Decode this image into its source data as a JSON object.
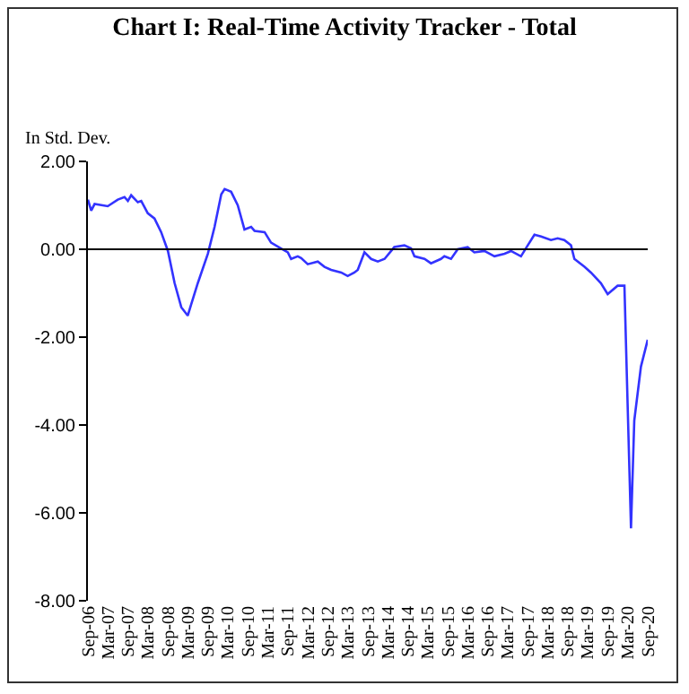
{
  "chart_data": {
    "type": "line",
    "title": "Chart I: Real-Time Activity Tracker - Total",
    "ylabel": "In Std. Dev.",
    "x": [
      "2006-09",
      "2006-10",
      "2006-11",
      "2007-03",
      "2007-06",
      "2007-08",
      "2007-09",
      "2007-10",
      "2007-12",
      "2008-01",
      "2008-03",
      "2008-05",
      "2008-07",
      "2008-09",
      "2008-11",
      "2009-01",
      "2009-03",
      "2009-04",
      "2009-06",
      "2009-09",
      "2009-11",
      "2010-01",
      "2010-02",
      "2010-04",
      "2010-06",
      "2010-08",
      "2010-10",
      "2010-11",
      "2011-02",
      "2011-04",
      "2011-07",
      "2011-09",
      "2011-10",
      "2011-12",
      "2012-01",
      "2012-03",
      "2012-06",
      "2012-08",
      "2012-10",
      "2013-01",
      "2013-03",
      "2013-05",
      "2013-06",
      "2013-08",
      "2013-10",
      "2013-12",
      "2014-02",
      "2014-05",
      "2014-08",
      "2014-10",
      "2014-11",
      "2015-02",
      "2015-04",
      "2015-07",
      "2015-08",
      "2015-10",
      "2015-12",
      "2016-03",
      "2016-05",
      "2016-08",
      "2016-11",
      "2017-02",
      "2017-04",
      "2017-07",
      "2017-09",
      "2017-11",
      "2018-01",
      "2018-04",
      "2018-06",
      "2018-08",
      "2018-10",
      "2018-11",
      "2019-02",
      "2019-04",
      "2019-07",
      "2019-09",
      "2019-12",
      "2020-02",
      "2020-03",
      "2020-04",
      "2020-05",
      "2020-07",
      "2020-09"
    ],
    "series": [
      {
        "color": "#3333ff",
        "values": [
          1.13,
          0.88,
          1.03,
          0.98,
          1.13,
          1.19,
          1.1,
          1.23,
          1.07,
          1.1,
          0.82,
          0.7,
          0.39,
          -0.04,
          -0.77,
          -1.32,
          -1.51,
          -1.26,
          -0.77,
          -0.1,
          0.51,
          1.25,
          1.37,
          1.31,
          1.0,
          0.45,
          0.51,
          0.42,
          0.39,
          0.15,
          0.02,
          -0.07,
          -0.22,
          -0.16,
          -0.2,
          -0.34,
          -0.28,
          -0.4,
          -0.47,
          -0.53,
          -0.61,
          -0.53,
          -0.47,
          -0.07,
          -0.22,
          -0.28,
          -0.22,
          0.05,
          0.09,
          0.02,
          -0.16,
          -0.22,
          -0.32,
          -0.22,
          -0.16,
          -0.22,
          0.0,
          0.05,
          -0.07,
          -0.04,
          -0.16,
          -0.1,
          -0.04,
          -0.16,
          0.09,
          0.33,
          0.29,
          0.21,
          0.25,
          0.21,
          0.09,
          -0.22,
          -0.4,
          -0.53,
          -0.77,
          -1.02,
          -0.83,
          -0.83,
          -3.5,
          -6.35,
          -3.9,
          -2.67,
          -2.06
        ]
      }
    ],
    "xlim": [
      "2006-09",
      "2020-09"
    ],
    "xticks": [
      {
        "value": "2006-09",
        "label": "Sep-06"
      },
      {
        "value": "2007-03",
        "label": "Mar-07"
      },
      {
        "value": "2007-09",
        "label": "Sep-07"
      },
      {
        "value": "2008-03",
        "label": "Mar-08"
      },
      {
        "value": "2008-09",
        "label": "Sep-08"
      },
      {
        "value": "2009-03",
        "label": "Mar-09"
      },
      {
        "value": "2009-09",
        "label": "Sep-09"
      },
      {
        "value": "2010-03",
        "label": "Mar-10"
      },
      {
        "value": "2010-09",
        "label": "Sep-10"
      },
      {
        "value": "2011-03",
        "label": "Mar-11"
      },
      {
        "value": "2011-09",
        "label": "Sep-11"
      },
      {
        "value": "2012-03",
        "label": "Mar-12"
      },
      {
        "value": "2012-09",
        "label": "Sep-12"
      },
      {
        "value": "2013-03",
        "label": "Mar-13"
      },
      {
        "value": "2013-09",
        "label": "Sep-13"
      },
      {
        "value": "2014-03",
        "label": "Mar-14"
      },
      {
        "value": "2014-09",
        "label": "Sep-14"
      },
      {
        "value": "2015-03",
        "label": "Mar-15"
      },
      {
        "value": "2015-09",
        "label": "Sep-15"
      },
      {
        "value": "2016-03",
        "label": "Mar-16"
      },
      {
        "value": "2016-09",
        "label": "Sep-16"
      },
      {
        "value": "2017-03",
        "label": "Mar-17"
      },
      {
        "value": "2017-09",
        "label": "Sep-17"
      },
      {
        "value": "2018-03",
        "label": "Mar-18"
      },
      {
        "value": "2018-09",
        "label": "Sep-18"
      },
      {
        "value": "2019-03",
        "label": "Mar-19"
      },
      {
        "value": "2019-09",
        "label": "Sep-19"
      },
      {
        "value": "2020-03",
        "label": "Mar-20"
      },
      {
        "value": "2020-09",
        "label": "Sep-20"
      }
    ],
    "ylim": [
      -8,
      2
    ],
    "yticks": [
      {
        "value": 2,
        "label": "2.00"
      },
      {
        "value": 0,
        "label": "0.00"
      },
      {
        "value": -2,
        "label": "-2.00"
      },
      {
        "value": -4,
        "label": "-4.00"
      },
      {
        "value": -6,
        "label": "-6.00"
      },
      {
        "value": -8,
        "label": "-8.00"
      }
    ],
    "ref_lines": [
      {
        "axis": "y",
        "value": 0,
        "color": "#000000"
      }
    ],
    "grid": false,
    "marker": "none",
    "line_style": "solid"
  }
}
